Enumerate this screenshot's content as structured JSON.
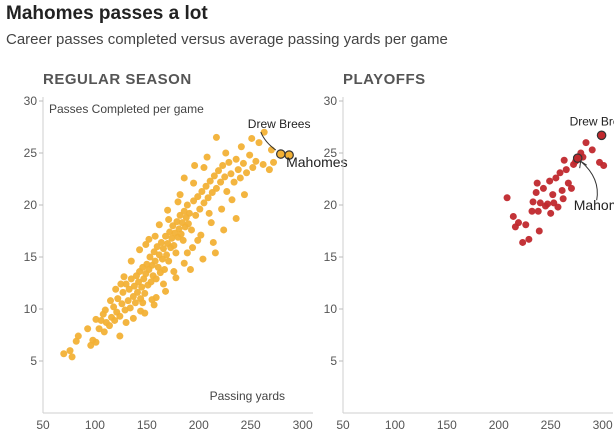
{
  "title": "Mahomes passes a lot",
  "subtitle": "Career passes completed versus average passing yards per game",
  "colors": {
    "regular": "#f2b136",
    "playoffs": "#c0282d",
    "highlight_stroke": "#333333"
  },
  "chart_data": [
    {
      "type": "scatter",
      "panel_title": "REGULAR SEASON",
      "xlabel": "Passing yards",
      "ylabel": "Passes Completed per game",
      "xlim": [
        50,
        310
      ],
      "ylim": [
        0,
        30
      ],
      "x_ticks": [
        50,
        100,
        150,
        200,
        250,
        300
      ],
      "y_ticks": [
        5,
        10,
        15,
        20,
        25,
        30
      ],
      "annotations": [
        {
          "text": "Drew Brees",
          "x": 279,
          "y": 24.9
        },
        {
          "text": "Mahomes",
          "x": 287,
          "y": 24.8
        }
      ],
      "highlights": [
        {
          "label": "Drew Brees",
          "x": 279,
          "y": 24.9
        },
        {
          "label": "Mahomes",
          "x": 287,
          "y": 24.8
        }
      ],
      "points": [
        [
          70,
          5.7
        ],
        [
          78,
          5.4
        ],
        [
          76,
          6.0
        ],
        [
          82,
          6.9
        ],
        [
          84,
          7.4
        ],
        [
          96,
          6.5
        ],
        [
          98,
          7.0
        ],
        [
          101,
          6.8
        ],
        [
          104,
          8.1
        ],
        [
          106,
          8.9
        ],
        [
          108,
          9.5
        ],
        [
          109,
          7.8
        ],
        [
          111,
          8.7
        ],
        [
          114,
          8.4
        ],
        [
          116,
          9.2
        ],
        [
          118,
          10.2
        ],
        [
          119,
          8.9
        ],
        [
          121,
          9.7
        ],
        [
          122,
          11.0
        ],
        [
          124,
          9.3
        ],
        [
          126,
          10.5
        ],
        [
          127,
          11.6
        ],
        [
          129,
          9.9
        ],
        [
          130,
          12.4
        ],
        [
          132,
          10.8
        ],
        [
          133,
          11.9
        ],
        [
          134,
          10.1
        ],
        [
          135,
          12.9
        ],
        [
          137,
          11.2
        ],
        [
          138,
          12.2
        ],
        [
          139,
          10.6
        ],
        [
          140,
          13.2
        ],
        [
          141,
          11.6
        ],
        [
          142,
          12.6
        ],
        [
          143,
          13.6
        ],
        [
          144,
          11.0
        ],
        [
          145,
          12.1
        ],
        [
          146,
          14.0
        ],
        [
          147,
          12.9
        ],
        [
          148,
          11.5
        ],
        [
          149,
          13.4
        ],
        [
          150,
          14.3
        ],
        [
          151,
          12.3
        ],
        [
          152,
          13.8
        ],
        [
          153,
          15.0
        ],
        [
          154,
          12.6
        ],
        [
          155,
          14.2
        ],
        [
          156,
          13.2
        ],
        [
          157,
          15.5
        ],
        [
          158,
          14.6
        ],
        [
          159,
          12.9
        ],
        [
          160,
          16.0
        ],
        [
          161,
          14.0
        ],
        [
          162,
          15.2
        ],
        [
          163,
          13.5
        ],
        [
          164,
          16.4
        ],
        [
          165,
          14.8
        ],
        [
          166,
          15.8
        ],
        [
          167,
          13.8
        ],
        [
          168,
          17.0
        ],
        [
          169,
          15.2
        ],
        [
          170,
          16.3
        ],
        [
          171,
          14.6
        ],
        [
          172,
          17.4
        ],
        [
          173,
          15.9
        ],
        [
          174,
          16.8
        ],
        [
          175,
          18.0
        ],
        [
          176,
          16.1
        ],
        [
          177,
          17.3
        ],
        [
          178,
          15.4
        ],
        [
          179,
          18.4
        ],
        [
          180,
          16.9
        ],
        [
          181,
          17.7
        ],
        [
          182,
          19.0
        ],
        [
          183,
          17.2
        ],
        [
          184,
          18.3
        ],
        [
          185,
          16.6
        ],
        [
          186,
          19.4
        ],
        [
          187,
          17.9
        ],
        [
          188,
          18.8
        ],
        [
          189,
          20.0
        ],
        [
          190,
          18.2
        ],
        [
          191,
          19.2
        ],
        [
          193,
          17.6
        ],
        [
          195,
          20.4
        ],
        [
          197,
          19.0
        ],
        [
          199,
          20.8
        ],
        [
          201,
          19.6
        ],
        [
          203,
          21.3
        ],
        [
          205,
          20.2
        ],
        [
          207,
          21.8
        ],
        [
          209,
          20.7
        ],
        [
          211,
          22.3
        ],
        [
          213,
          21.2
        ],
        [
          215,
          22.8
        ],
        [
          217,
          21.6
        ],
        [
          219,
          23.3
        ],
        [
          221,
          22.2
        ],
        [
          223,
          23.8
        ],
        [
          225,
          22.7
        ],
        [
          227,
          21.3
        ],
        [
          229,
          24.1
        ],
        [
          231,
          23.0
        ],
        [
          234,
          22.2
        ],
        [
          236,
          24.4
        ],
        [
          238,
          23.4
        ],
        [
          240,
          22.6
        ],
        [
          243,
          24.0
        ],
        [
          246,
          23.1
        ],
        [
          249,
          24.8
        ],
        [
          252,
          23.6
        ],
        [
          255,
          24.2
        ],
        [
          262,
          23.9
        ],
        [
          268,
          23.4
        ],
        [
          272,
          24.1
        ],
        [
          144,
          9.8
        ],
        [
          137,
          9.1
        ],
        [
          130,
          8.7
        ],
        [
          159,
          11.1
        ],
        [
          166,
          12.4
        ],
        [
          176,
          13.6
        ],
        [
          186,
          14.4
        ],
        [
          194,
          15.9
        ],
        [
          202,
          17.1
        ],
        [
          212,
          18.3
        ],
        [
          222,
          19.6
        ],
        [
          232,
          20.5
        ],
        [
          244,
          21.0
        ],
        [
          152,
          16.7
        ],
        [
          162,
          18.1
        ],
        [
          170,
          19.5
        ],
        [
          182,
          21.0
        ],
        [
          195,
          22.1
        ],
        [
          205,
          23.6
        ],
        [
          210,
          19.2
        ],
        [
          199,
          16.6
        ],
        [
          189,
          15.4
        ],
        [
          178,
          13.0
        ],
        [
          168,
          11.7
        ],
        [
          157,
          10.4
        ],
        [
          148,
          9.6
        ],
        [
          120,
          11.9
        ],
        [
          115,
          10.8
        ],
        [
          208,
          24.6
        ],
        [
          226,
          25.0
        ],
        [
          241,
          25.6
        ],
        [
          258,
          26.0
        ],
        [
          270,
          25.3
        ],
        [
          236,
          18.7
        ],
        [
          224,
          17.6
        ],
        [
          214,
          16.4
        ],
        [
          135,
          14.6
        ],
        [
          143,
          15.7
        ],
        [
          128,
          13.1
        ],
        [
          110,
          9.9
        ],
        [
          101,
          9.0
        ],
        [
          93,
          8.1
        ],
        [
          124,
          7.4
        ],
        [
          186,
          22.6
        ],
        [
          196,
          23.8
        ],
        [
          251,
          26.4
        ],
        [
          263,
          27.0
        ],
        [
          217,
          26.5
        ],
        [
          180,
          20.3
        ],
        [
          171,
          18.6
        ],
        [
          158,
          17.0
        ],
        [
          149,
          16.2
        ],
        [
          125,
          12.4
        ],
        [
          155,
          10.9
        ],
        [
          146,
          10.6
        ],
        [
          192,
          13.8
        ],
        [
          204,
          14.8
        ],
        [
          216,
          15.4
        ]
      ]
    },
    {
      "type": "scatter",
      "panel_title": "PLAYOFFS",
      "xlim": [
        50,
        310
      ],
      "ylim": [
        0,
        30
      ],
      "x_ticks": [
        50,
        100,
        150,
        200,
        250,
        300
      ],
      "y_ticks": [
        5,
        10,
        15,
        20,
        25,
        30
      ],
      "annotations": [
        {
          "text": "Drew Brees",
          "x": 299,
          "y": 26.7
        },
        {
          "text": "Mahomes",
          "x": 276,
          "y": 24.5
        }
      ],
      "highlights": [
        {
          "label": "Drew Brees",
          "x": 299,
          "y": 26.7
        },
        {
          "label": "Mahomes",
          "x": 276,
          "y": 24.5
        }
      ],
      "points": [
        [
          208,
          20.7
        ],
        [
          214,
          18.9
        ],
        [
          216,
          17.9
        ],
        [
          219,
          18.3
        ],
        [
          223,
          16.4
        ],
        [
          229,
          16.7
        ],
        [
          232,
          19.4
        ],
        [
          233,
          20.3
        ],
        [
          236,
          21.2
        ],
        [
          237,
          22.1
        ],
        [
          238,
          19.4
        ],
        [
          239,
          17.5
        ],
        [
          240,
          20.2
        ],
        [
          243,
          21.6
        ],
        [
          245,
          19.9
        ],
        [
          247,
          20.1
        ],
        [
          249,
          22.3
        ],
        [
          250,
          19.2
        ],
        [
          252,
          21.0
        ],
        [
          255,
          22.6
        ],
        [
          257,
          19.8
        ],
        [
          259,
          23.1
        ],
        [
          261,
          21.4
        ],
        [
          263,
          24.3
        ],
        [
          265,
          23.4
        ],
        [
          267,
          22.1
        ],
        [
          270,
          21.6
        ],
        [
          272,
          23.9
        ],
        [
          274,
          24.2
        ],
        [
          279,
          25.0
        ],
        [
          281,
          24.6
        ],
        [
          284,
          26.0
        ],
        [
          290,
          25.3
        ],
        [
          297,
          24.1
        ],
        [
          301,
          23.8
        ],
        [
          226,
          18.1
        ],
        [
          253,
          20.2
        ],
        [
          262,
          20.6
        ]
      ]
    }
  ]
}
